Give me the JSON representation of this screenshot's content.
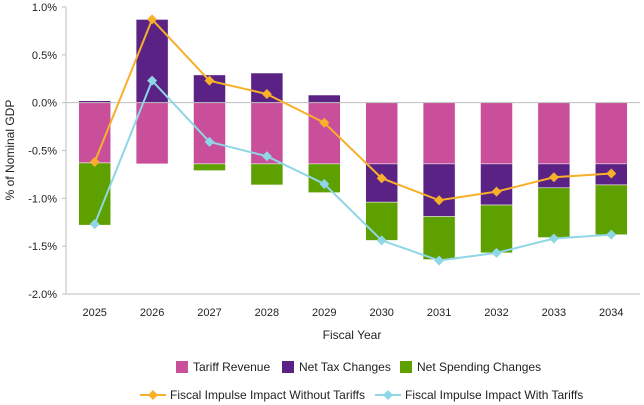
{
  "chart_data": {
    "type": "bar",
    "stacked": true,
    "categories": [
      "2025",
      "2026",
      "2027",
      "2028",
      "2029",
      "2030",
      "2031",
      "2032",
      "2033",
      "2034"
    ],
    "xlabel": "Fiscal Year",
    "ylabel": "% of Nominal GDP",
    "ylim": [
      -2.0,
      1.0
    ],
    "yticks": [
      1.0,
      0.5,
      0.0,
      -0.5,
      -1.0,
      -1.5,
      -2.0
    ],
    "ytick_labels": [
      "1.0%",
      "0.5%",
      "0.0%",
      "-0.5%",
      "-1.0%",
      "-1.5%",
      "-2.0%"
    ],
    "grid": false,
    "legend_position": "bottom",
    "bar_series": [
      {
        "name": "Tariff Revenue",
        "color": "#c94f9a",
        "values": [
          -0.63,
          -0.64,
          -0.64,
          -0.64,
          -0.64,
          -0.64,
          -0.64,
          -0.64,
          -0.64,
          -0.64
        ]
      },
      {
        "name": "Net Tax Changes",
        "color": "#5b2286",
        "values": [
          0.02,
          0.87,
          0.29,
          0.31,
          0.08,
          -0.4,
          -0.55,
          -0.43,
          -0.25,
          -0.22
        ]
      },
      {
        "name": "Net Spending Changes",
        "color": "#5ea000",
        "values": [
          -0.65,
          0.0,
          -0.07,
          -0.22,
          -0.3,
          -0.4,
          -0.45,
          -0.5,
          -0.52,
          -0.52
        ]
      }
    ],
    "line_series": [
      {
        "name": "Fiscal Impulse Impact Without Tariffs",
        "color": "#f6b02a",
        "marker": "diamond",
        "values": [
          -0.62,
          0.87,
          0.23,
          0.09,
          -0.21,
          -0.79,
          -1.02,
          -0.93,
          -0.78,
          -0.74
        ]
      },
      {
        "name": "Fiscal Impulse Impact With Tariffs",
        "color": "#8fd6e6",
        "marker": "diamond",
        "values": [
          -1.27,
          0.23,
          -0.41,
          -0.56,
          -0.85,
          -1.44,
          -1.65,
          -1.57,
          -1.42,
          -1.38
        ]
      }
    ]
  }
}
